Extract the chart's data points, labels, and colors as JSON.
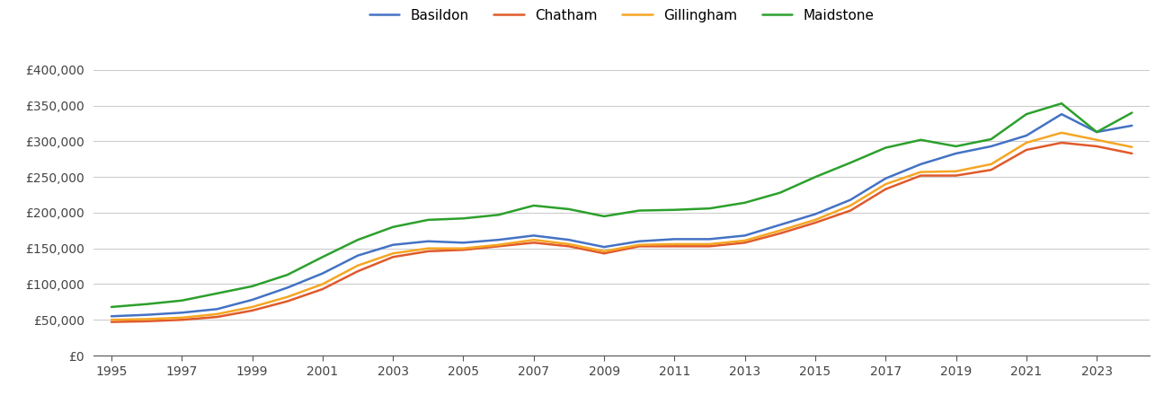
{
  "years": [
    1995,
    1996,
    1997,
    1998,
    1999,
    2000,
    2001,
    2002,
    2003,
    2004,
    2005,
    2006,
    2007,
    2008,
    2009,
    2010,
    2011,
    2012,
    2013,
    2014,
    2015,
    2016,
    2017,
    2018,
    2019,
    2020,
    2021,
    2022,
    2023,
    2024
  ],
  "Basildon": [
    55000,
    57000,
    60000,
    65000,
    78000,
    95000,
    115000,
    140000,
    155000,
    160000,
    158000,
    162000,
    168000,
    162000,
    152000,
    160000,
    163000,
    163000,
    168000,
    183000,
    198000,
    218000,
    248000,
    268000,
    283000,
    293000,
    308000,
    338000,
    313000,
    322000
  ],
  "Chatham": [
    47000,
    48000,
    50000,
    54000,
    63000,
    76000,
    93000,
    118000,
    138000,
    146000,
    148000,
    153000,
    158000,
    153000,
    143000,
    153000,
    153000,
    153000,
    158000,
    171000,
    186000,
    203000,
    233000,
    252000,
    252000,
    260000,
    288000,
    298000,
    293000,
    283000
  ],
  "Gillingham": [
    50000,
    51000,
    53000,
    58000,
    68000,
    82000,
    100000,
    126000,
    143000,
    150000,
    150000,
    155000,
    162000,
    156000,
    146000,
    155000,
    156000,
    156000,
    161000,
    175000,
    190000,
    210000,
    240000,
    257000,
    258000,
    268000,
    298000,
    312000,
    302000,
    292000
  ],
  "Maidstone": [
    68000,
    72000,
    77000,
    87000,
    97000,
    113000,
    138000,
    162000,
    180000,
    190000,
    192000,
    197000,
    210000,
    205000,
    195000,
    203000,
    204000,
    206000,
    214000,
    228000,
    250000,
    270000,
    291000,
    302000,
    293000,
    303000,
    338000,
    353000,
    313000,
    340000
  ],
  "colors": {
    "Basildon": "#4472c4",
    "Chatham": "#e05a2b",
    "Gillingham": "#f5a623",
    "Maidstone": "#2ca02c"
  },
  "ylim": [
    0,
    430000
  ],
  "yticks": [
    0,
    50000,
    100000,
    150000,
    200000,
    250000,
    300000,
    350000,
    400000
  ],
  "xlim": [
    1994.5,
    2024.5
  ],
  "xtick_start": 1995,
  "xtick_end": 2023,
  "xtick_step": 2,
  "background_color": "#ffffff",
  "grid_color": "#cccccc",
  "legend_labels": [
    "Basildon",
    "Chatham",
    "Gillingham",
    "Maidstone"
  ],
  "tick_fontsize": 10,
  "legend_fontsize": 11
}
